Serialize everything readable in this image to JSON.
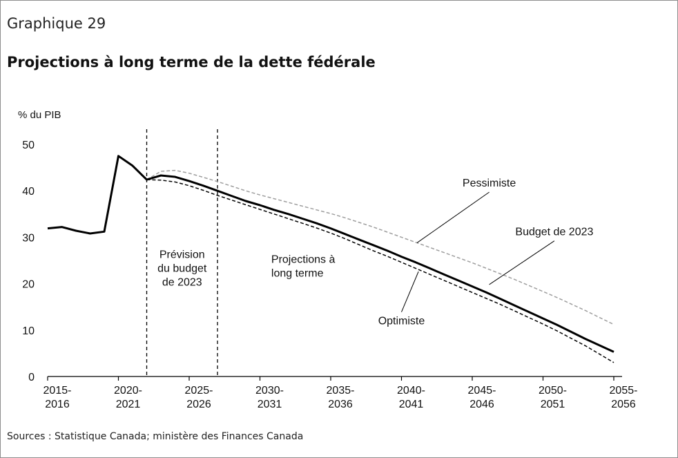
{
  "header": {
    "label": "Graphique 29",
    "title": "Projections à long terme de la dette fédérale"
  },
  "footer": {
    "source": "Sources : Statistique Canada; ministère des Finances Canada"
  },
  "chart_data": {
    "type": "line",
    "title": "Projections à long terme de la dette fédérale",
    "ylabel": "% du PIB",
    "xlabel": "",
    "ylim": [
      0,
      50
    ],
    "yticks": [
      0,
      10,
      20,
      30,
      40,
      50
    ],
    "xlim": [
      2015,
      2056
    ],
    "xticks": [
      {
        "x": 2015,
        "line1": "2015-",
        "line2": "2016"
      },
      {
        "x": 2020,
        "line1": "2020-",
        "line2": "2021"
      },
      {
        "x": 2025,
        "line1": "2025-",
        "line2": "2026"
      },
      {
        "x": 2030,
        "line1": "2030-",
        "line2": "2031"
      },
      {
        "x": 2035,
        "line1": "2035-",
        "line2": "2036"
      },
      {
        "x": 2040,
        "line1": "2040-",
        "line2": "2041"
      },
      {
        "x": 2045,
        "line1": "2045-",
        "line2": "2046"
      },
      {
        "x": 2050,
        "line1": "2050-",
        "line2": "2051"
      },
      {
        "x": 2055,
        "line1": "2055-",
        "line2": "2056"
      }
    ],
    "grid": false,
    "separators": [
      2022,
      2027
    ],
    "region_labels": [
      {
        "x": 2024.5,
        "y": 25.5,
        "lines": [
          "Prévision",
          "du budget",
          "de 2023"
        ],
        "anchor": "middle"
      },
      {
        "x": 2030.8,
        "y": 24.5,
        "lines": [
          "Projections à",
          "long terme"
        ],
        "anchor": "start"
      }
    ],
    "series": [
      {
        "name": "Budget de 2023",
        "color": "#000000",
        "style": "solid-thick",
        "x": [
          2015,
          2016,
          2017,
          2018,
          2019,
          2020,
          2021,
          2022,
          2023,
          2024,
          2025,
          2026,
          2027,
          2028,
          2029,
          2030,
          2031,
          2032,
          2033,
          2034,
          2035,
          2036,
          2037,
          2038,
          2039,
          2040,
          2041,
          2042,
          2043,
          2044,
          2045,
          2046,
          2047,
          2048,
          2049,
          2050,
          2051,
          2052,
          2053,
          2054,
          2055
        ],
        "values": [
          31.9,
          32.2,
          31.4,
          30.8,
          31.2,
          47.5,
          45.4,
          42.4,
          43.3,
          43.0,
          42.1,
          41.1,
          40.0,
          38.9,
          37.8,
          36.9,
          35.9,
          35.0,
          34.0,
          33.0,
          31.9,
          30.7,
          29.5,
          28.3,
          27.1,
          25.8,
          24.6,
          23.3,
          22.0,
          20.7,
          19.4,
          18.1,
          16.7,
          15.3,
          13.9,
          12.5,
          11.1,
          9.6,
          8.1,
          6.7,
          5.3
        ]
      },
      {
        "name": "Pessimiste",
        "color": "#9e9e9e",
        "style": "dashed",
        "x": [
          2022,
          2023,
          2024,
          2025,
          2026,
          2027,
          2028,
          2029,
          2030,
          2031,
          2032,
          2033,
          2034,
          2035,
          2036,
          2037,
          2038,
          2039,
          2040,
          2041,
          2042,
          2043,
          2044,
          2045,
          2046,
          2047,
          2048,
          2049,
          2050,
          2051,
          2052,
          2053,
          2054,
          2055
        ],
        "values": [
          42.4,
          44.2,
          44.4,
          43.8,
          42.9,
          42.0,
          41.0,
          40.0,
          39.1,
          38.3,
          37.5,
          36.7,
          35.9,
          35.1,
          34.2,
          33.2,
          32.2,
          31.1,
          30.0,
          28.9,
          27.8,
          26.7,
          25.6,
          24.5,
          23.3,
          22.1,
          20.9,
          19.6,
          18.3,
          17.0,
          15.6,
          14.2,
          12.7,
          11.2
        ]
      },
      {
        "name": "Optimiste",
        "color": "#000000",
        "style": "dashed",
        "x": [
          2022,
          2023,
          2024,
          2025,
          2026,
          2027,
          2028,
          2029,
          2030,
          2031,
          2032,
          2033,
          2034,
          2035,
          2036,
          2037,
          2038,
          2039,
          2040,
          2041,
          2042,
          2043,
          2044,
          2045,
          2046,
          2047,
          2048,
          2049,
          2050,
          2051,
          2052,
          2053,
          2054,
          2055
        ],
        "values": [
          42.4,
          42.3,
          41.9,
          41.1,
          40.1,
          39.0,
          38.0,
          37.0,
          36.0,
          35.0,
          34.0,
          33.0,
          32.0,
          30.9,
          29.7,
          28.4,
          27.1,
          25.9,
          24.6,
          23.3,
          22.0,
          20.7,
          19.4,
          18.1,
          16.8,
          15.5,
          14.1,
          12.7,
          11.3,
          9.8,
          8.2,
          6.6,
          4.8,
          3.0
        ]
      }
    ],
    "annotations": [
      {
        "text": "Pessimiste",
        "series": "Pessimiste",
        "label_x": 2046.2,
        "label_y": 40.9,
        "point_x": 2041.1,
        "point_y": 28.8,
        "anchor": "middle"
      },
      {
        "text": "Budget de 2023",
        "series": "Budget de 2023",
        "label_x": 2050.8,
        "label_y": 30.4,
        "point_x": 2046.2,
        "point_y": 19.8,
        "anchor": "middle"
      },
      {
        "text": "Optimiste",
        "series": "Optimiste",
        "label_x": 2040.0,
        "label_y": 11.2,
        "point_x": 2041.2,
        "point_y": 22.6,
        "anchor": "middle"
      }
    ]
  }
}
